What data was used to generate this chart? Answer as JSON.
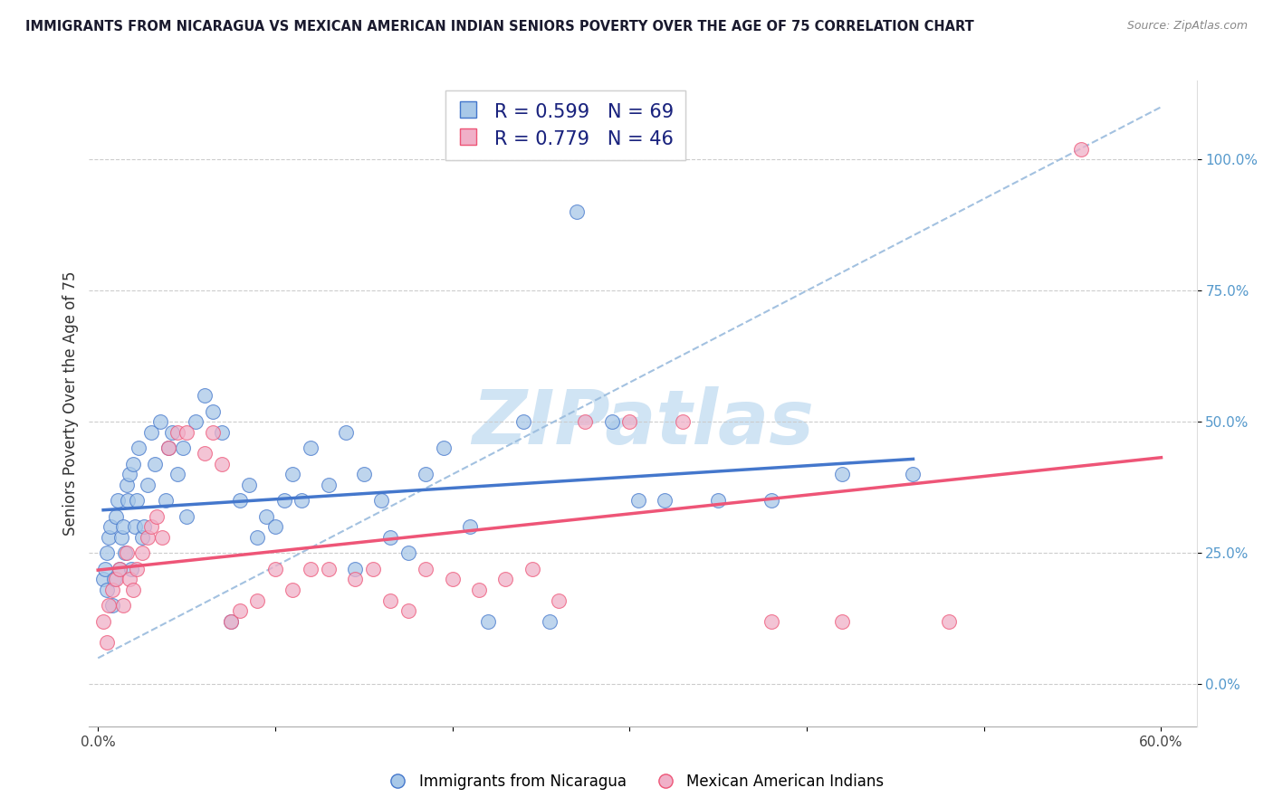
{
  "title": "IMMIGRANTS FROM NICARAGUA VS MEXICAN AMERICAN INDIAN SENIORS POVERTY OVER THE AGE OF 75 CORRELATION CHART",
  "source": "Source: ZipAtlas.com",
  "ylabel": "Seniors Poverty Over the Age of 75",
  "xlim_min": -0.005,
  "xlim_max": 0.62,
  "ylim_min": -0.08,
  "ylim_max": 1.15,
  "r_nicaragua": 0.599,
  "n_nicaragua": 69,
  "r_mexican": 0.779,
  "n_mexican": 46,
  "color_nicaragua": "#a8c8e8",
  "color_mexican": "#f0b0c8",
  "line_color_nicaragua": "#4477cc",
  "line_color_mexican": "#ee5577",
  "line_color_diagonal": "#99bbdd",
  "legend_label_nicaragua": "Immigrants from Nicaragua",
  "legend_label_mexican": "Mexican American Indians",
  "watermark": "ZIPatlas",
  "watermark_color": "#d0e4f4",
  "scatter_nicaragua_x": [
    0.003,
    0.004,
    0.005,
    0.005,
    0.006,
    0.007,
    0.008,
    0.009,
    0.01,
    0.011,
    0.012,
    0.013,
    0.014,
    0.015,
    0.016,
    0.017,
    0.018,
    0.019,
    0.02,
    0.021,
    0.022,
    0.023,
    0.025,
    0.026,
    0.028,
    0.03,
    0.032,
    0.035,
    0.038,
    0.04,
    0.042,
    0.045,
    0.048,
    0.05,
    0.055,
    0.06,
    0.065,
    0.07,
    0.075,
    0.08,
    0.085,
    0.09,
    0.095,
    0.1,
    0.105,
    0.11,
    0.115,
    0.12,
    0.13,
    0.14,
    0.145,
    0.15,
    0.16,
    0.165,
    0.175,
    0.185,
    0.195,
    0.21,
    0.22,
    0.24,
    0.255,
    0.27,
    0.29,
    0.305,
    0.32,
    0.35,
    0.38,
    0.42,
    0.46
  ],
  "scatter_nicaragua_y": [
    0.2,
    0.22,
    0.25,
    0.18,
    0.28,
    0.3,
    0.15,
    0.2,
    0.32,
    0.35,
    0.22,
    0.28,
    0.3,
    0.25,
    0.38,
    0.35,
    0.4,
    0.22,
    0.42,
    0.3,
    0.35,
    0.45,
    0.28,
    0.3,
    0.38,
    0.48,
    0.42,
    0.5,
    0.35,
    0.45,
    0.48,
    0.4,
    0.45,
    0.32,
    0.5,
    0.55,
    0.52,
    0.48,
    0.12,
    0.35,
    0.38,
    0.28,
    0.32,
    0.3,
    0.35,
    0.4,
    0.35,
    0.45,
    0.38,
    0.48,
    0.22,
    0.4,
    0.35,
    0.28,
    0.25,
    0.4,
    0.45,
    0.3,
    0.12,
    0.5,
    0.12,
    0.9,
    0.5,
    0.35,
    0.35,
    0.35,
    0.35,
    0.4,
    0.4
  ],
  "scatter_mexican_x": [
    0.003,
    0.005,
    0.006,
    0.008,
    0.01,
    0.012,
    0.014,
    0.016,
    0.018,
    0.02,
    0.022,
    0.025,
    0.028,
    0.03,
    0.033,
    0.036,
    0.04,
    0.045,
    0.05,
    0.06,
    0.065,
    0.07,
    0.075,
    0.08,
    0.09,
    0.1,
    0.11,
    0.12,
    0.13,
    0.145,
    0.155,
    0.165,
    0.175,
    0.185,
    0.2,
    0.215,
    0.23,
    0.245,
    0.26,
    0.275,
    0.3,
    0.33,
    0.38,
    0.42,
    0.48,
    0.555
  ],
  "scatter_mexican_y": [
    0.12,
    0.08,
    0.15,
    0.18,
    0.2,
    0.22,
    0.15,
    0.25,
    0.2,
    0.18,
    0.22,
    0.25,
    0.28,
    0.3,
    0.32,
    0.28,
    0.45,
    0.48,
    0.48,
    0.44,
    0.48,
    0.42,
    0.12,
    0.14,
    0.16,
    0.22,
    0.18,
    0.22,
    0.22,
    0.2,
    0.22,
    0.16,
    0.14,
    0.22,
    0.2,
    0.18,
    0.2,
    0.22,
    0.16,
    0.5,
    0.5,
    0.5,
    0.12,
    0.12,
    0.12,
    1.02
  ]
}
